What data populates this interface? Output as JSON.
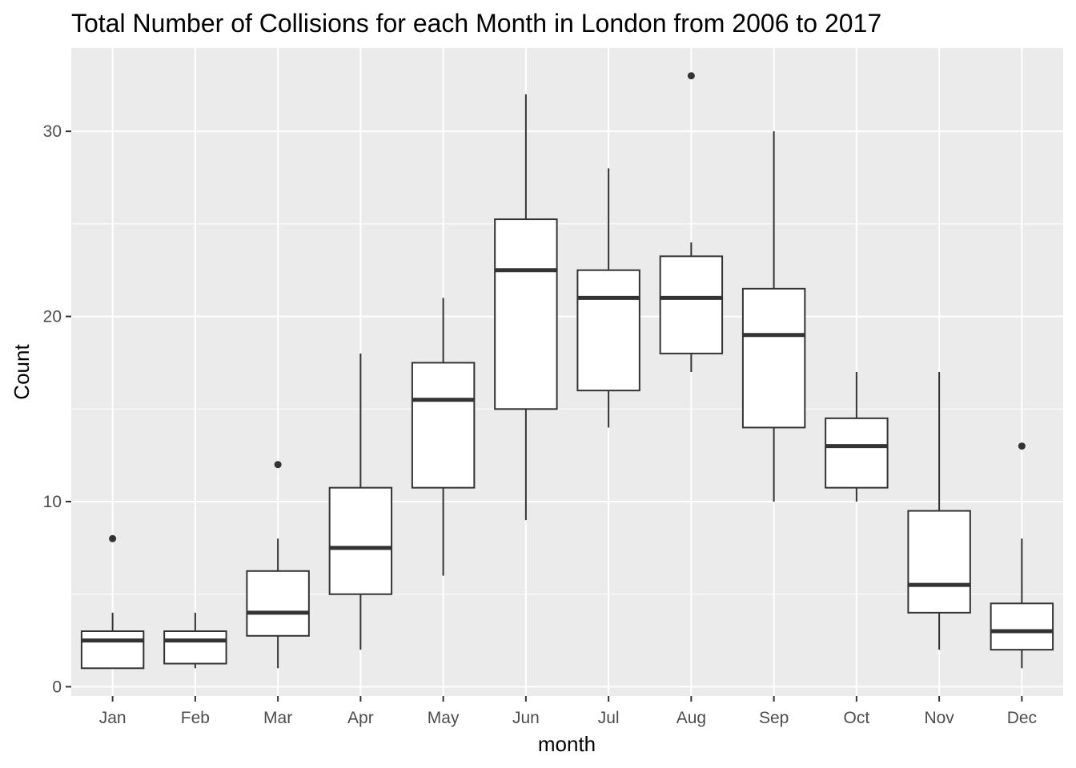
{
  "chart_data": {
    "type": "boxplot",
    "title": "Total Number of Collisions for each Month in London from 2006 to 2017",
    "xlabel": "month",
    "ylabel": "Count",
    "ylim": [
      -0.5,
      34.5
    ],
    "yticks": [
      0,
      10,
      20,
      30
    ],
    "grid": true,
    "colors": {
      "panel_background": "#ebebeb",
      "grid_major": "#ffffff",
      "box_fill": "#ffffff",
      "box_stroke": "#333333",
      "outlier": "#333333",
      "tick_label": "#4d4d4d",
      "text": "#000000"
    },
    "categories": [
      "Jan",
      "Feb",
      "Mar",
      "Apr",
      "May",
      "Jun",
      "Jul",
      "Aug",
      "Sep",
      "Oct",
      "Nov",
      "Dec"
    ],
    "boxes": [
      {
        "month": "Jan",
        "whisker_low": 1,
        "q1": 1,
        "median": 2.5,
        "q3": 3,
        "whisker_high": 4,
        "outliers": [
          8
        ]
      },
      {
        "month": "Feb",
        "whisker_low": 1,
        "q1": 1.25,
        "median": 2.5,
        "q3": 3,
        "whisker_high": 4,
        "outliers": []
      },
      {
        "month": "Mar",
        "whisker_low": 1,
        "q1": 2.75,
        "median": 4,
        "q3": 6.25,
        "whisker_high": 8,
        "outliers": [
          12
        ]
      },
      {
        "month": "Apr",
        "whisker_low": 2,
        "q1": 5,
        "median": 7.5,
        "q3": 10.75,
        "whisker_high": 18,
        "outliers": []
      },
      {
        "month": "May",
        "whisker_low": 6,
        "q1": 10.75,
        "median": 15.5,
        "q3": 17.5,
        "whisker_high": 21,
        "outliers": []
      },
      {
        "month": "Jun",
        "whisker_low": 9,
        "q1": 15,
        "median": 22.5,
        "q3": 25.25,
        "whisker_high": 32,
        "outliers": []
      },
      {
        "month": "Jul",
        "whisker_low": 14,
        "q1": 16,
        "median": 21,
        "q3": 22.5,
        "whisker_high": 28,
        "outliers": []
      },
      {
        "month": "Aug",
        "whisker_low": 17,
        "q1": 18,
        "median": 21,
        "q3": 23.25,
        "whisker_high": 24,
        "outliers": [
          33
        ]
      },
      {
        "month": "Sep",
        "whisker_low": 10,
        "q1": 14,
        "median": 19,
        "q3": 21.5,
        "whisker_high": 30,
        "outliers": []
      },
      {
        "month": "Oct",
        "whisker_low": 10,
        "q1": 10.75,
        "median": 13,
        "q3": 14.5,
        "whisker_high": 17,
        "outliers": []
      },
      {
        "month": "Nov",
        "whisker_low": 2,
        "q1": 4,
        "median": 5.5,
        "q3": 9.5,
        "whisker_high": 17,
        "outliers": []
      },
      {
        "month": "Dec",
        "whisker_low": 1,
        "q1": 2,
        "median": 3,
        "q3": 4.5,
        "whisker_high": 8,
        "outliers": [
          13
        ]
      }
    ]
  }
}
